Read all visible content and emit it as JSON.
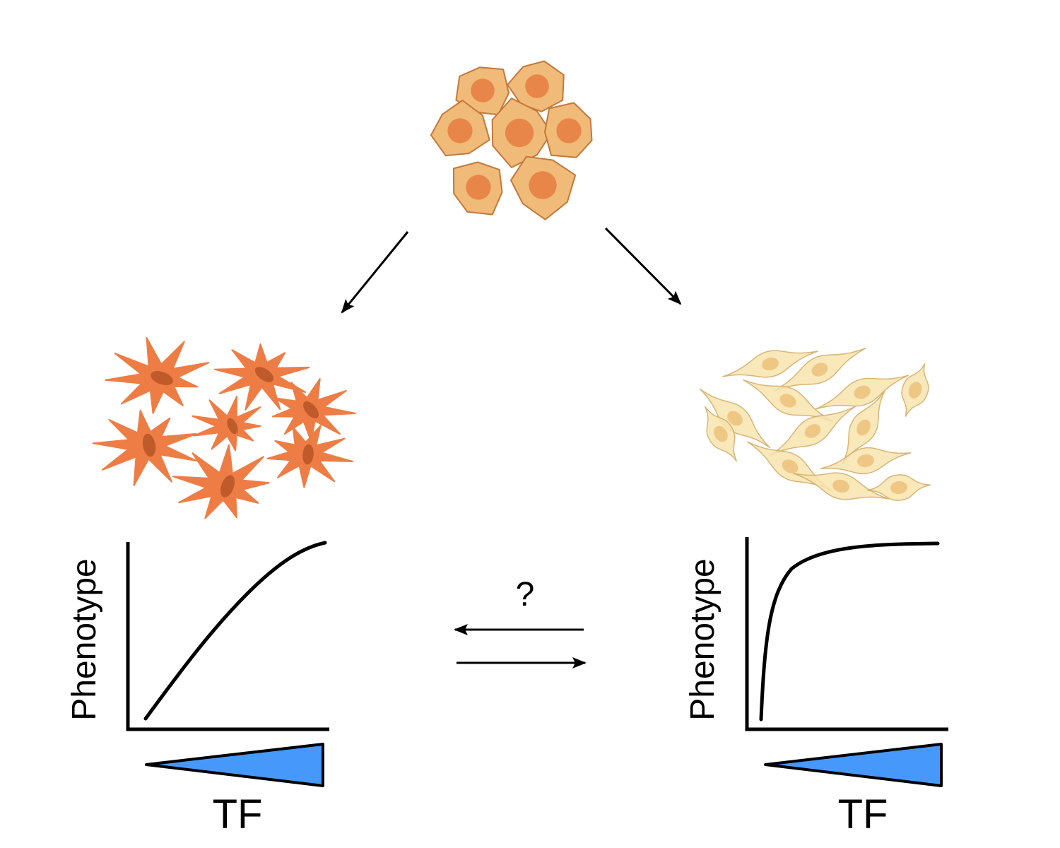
{
  "colors": {
    "progenitor_fill": "#F0BA78",
    "progenitor_stroke": "#C4783A",
    "progenitor_nucleus": "#E8864A",
    "left_cell_fill": "#EE7D45",
    "left_cell_nucleus": "#BF5A2A",
    "right_cell_fill": "#F8E4AE",
    "right_cell_stroke": "#D2A960",
    "right_cell_nucleus": "#EFC785",
    "wedge_fill": "#4699FA",
    "ink": "#000000"
  },
  "icons": {
    "progenitor": "epithelial-cell-cluster-icon",
    "left_population": "stellate-cell-cluster-icon",
    "right_population": "fibroblast-cell-cluster-icon"
  },
  "left_panel": {
    "y_label": "Phenotype",
    "x_label": "TF",
    "response": "gradual"
  },
  "right_panel": {
    "y_label": "Phenotype",
    "x_label": "TF",
    "response": "saturating"
  },
  "transition": {
    "label": "?"
  }
}
